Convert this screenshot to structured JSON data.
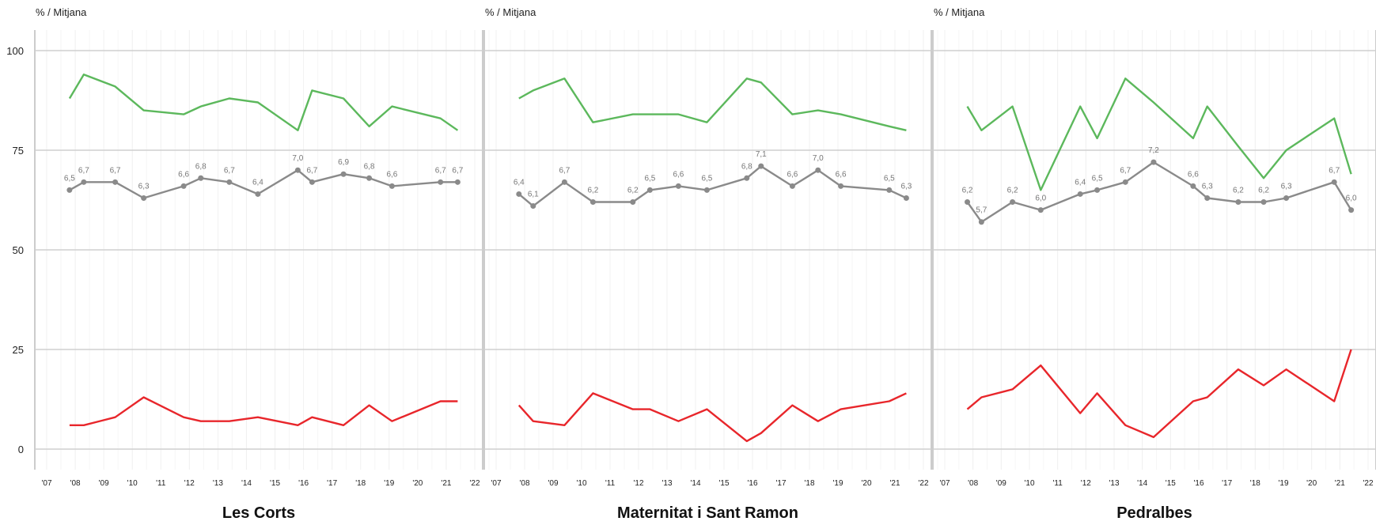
{
  "unit_label": "% / Mitjana",
  "chart_data": [
    {
      "type": "line",
      "title": "Les Corts",
      "ylabel": "% / Mitjana",
      "ylim": [
        0,
        100
      ],
      "yticks": [
        0,
        25,
        50,
        75,
        100
      ],
      "xticks": [
        "'07",
        "'08",
        "'09",
        "'10",
        "'11",
        "'12",
        "'13",
        "'14",
        "'15",
        "'16",
        "'17",
        "'18",
        "'19",
        "'20",
        "'21",
        "'22"
      ],
      "xlim": [
        2007,
        2022
      ],
      "grid": true,
      "series": [
        {
          "color": "#5cb85c",
          "role": "upper",
          "x": [
            2007.8,
            2008.3,
            2009.4,
            2010.4,
            2011.8,
            2012.4,
            2013.4,
            2014.4,
            2015.8,
            2016.3,
            2017.4,
            2018.3,
            2019.1,
            2020.8,
            2021.4
          ],
          "values": [
            88,
            94,
            91,
            85,
            84,
            86,
            88,
            87,
            80,
            90,
            88,
            81,
            86,
            83,
            80
          ]
        },
        {
          "color": "#8a8a8a",
          "role": "mean",
          "markers": true,
          "x": [
            2007.8,
            2008.3,
            2009.4,
            2010.4,
            2011.8,
            2012.4,
            2013.4,
            2014.4,
            2015.8,
            2016.3,
            2017.4,
            2018.3,
            2019.1,
            2020.8,
            2021.4
          ],
          "values": [
            65,
            67,
            67,
            63,
            66,
            68,
            67,
            64,
            70,
            67,
            69,
            68,
            66,
            67,
            67
          ],
          "labels": [
            "6,5",
            "6,7",
            "6,7",
            "6,3",
            "6,6",
            "6,8",
            "6,7",
            "6,4",
            "7,0",
            "6,7",
            "6,9",
            "6,8",
            "6,6",
            "6,7",
            "6,7"
          ]
        },
        {
          "color": "#e8262b",
          "role": "lower",
          "x": [
            2007.8,
            2008.3,
            2009.4,
            2010.4,
            2011.8,
            2012.4,
            2013.4,
            2014.4,
            2015.8,
            2016.3,
            2017.4,
            2018.3,
            2019.1,
            2020.8,
            2021.4
          ],
          "values": [
            6,
            6,
            8,
            13,
            8,
            7,
            7,
            8,
            6,
            8,
            6,
            11,
            7,
            12,
            12
          ]
        }
      ]
    },
    {
      "type": "line",
      "title": "Maternitat i Sant Ramon",
      "ylabel": "% / Mitjana",
      "ylim": [
        0,
        100
      ],
      "xticks": [
        "'07",
        "'08",
        "'09",
        "'10",
        "'11",
        "'12",
        "'13",
        "'14",
        "'15",
        "'16",
        "'17",
        "'18",
        "'19",
        "'20",
        "'21",
        "'22"
      ],
      "xlim": [
        2007,
        2022
      ],
      "grid": true,
      "series": [
        {
          "color": "#5cb85c",
          "role": "upper",
          "x": [
            2007.8,
            2008.3,
            2009.4,
            2010.4,
            2011.8,
            2012.4,
            2013.4,
            2014.4,
            2015.8,
            2016.3,
            2017.4,
            2018.3,
            2019.1,
            2020.8,
            2021.4
          ],
          "values": [
            88,
            90,
            93,
            82,
            84,
            84,
            84,
            82,
            93,
            92,
            84,
            85,
            84,
            81,
            80
          ]
        },
        {
          "color": "#8a8a8a",
          "role": "mean",
          "markers": true,
          "x": [
            2007.8,
            2008.3,
            2009.4,
            2010.4,
            2011.8,
            2012.4,
            2013.4,
            2014.4,
            2015.8,
            2016.3,
            2017.4,
            2018.3,
            2019.1,
            2020.8,
            2021.4
          ],
          "values": [
            64,
            61,
            67,
            62,
            62,
            65,
            66,
            65,
            68,
            71,
            66,
            70,
            66,
            65,
            63
          ],
          "labels": [
            "6,4",
            "6,1",
            "6,7",
            "6,2",
            "6,2",
            "6,5",
            "6,6",
            "6,5",
            "6,8",
            "7,1",
            "6,6",
            "7,0",
            "6,6",
            "6,5",
            "6,3"
          ]
        },
        {
          "color": "#e8262b",
          "role": "lower",
          "x": [
            2007.8,
            2008.3,
            2009.4,
            2010.4,
            2011.8,
            2012.4,
            2013.4,
            2014.4,
            2015.8,
            2016.3,
            2017.4,
            2018.3,
            2019.1,
            2020.8,
            2021.4
          ],
          "values": [
            11,
            7,
            6,
            14,
            10,
            10,
            7,
            10,
            2,
            4,
            11,
            7,
            10,
            12,
            14
          ]
        }
      ]
    },
    {
      "type": "line",
      "title": "Pedralbes",
      "ylabel": "% / Mitjana",
      "ylim": [
        0,
        100
      ],
      "xticks": [
        "'07",
        "'08",
        "'09",
        "'10",
        "'11",
        "'12",
        "'13",
        "'14",
        "'15",
        "'16",
        "'17",
        "'18",
        "'19",
        "'20",
        "'21",
        "'22"
      ],
      "xlim": [
        2007,
        2022
      ],
      "grid": true,
      "series": [
        {
          "color": "#5cb85c",
          "role": "upper",
          "x": [
            2007.8,
            2008.3,
            2009.4,
            2010.4,
            2011.8,
            2012.4,
            2013.4,
            2014.4,
            2015.8,
            2016.3,
            2017.4,
            2018.3,
            2019.1,
            2020.8,
            2021.4
          ],
          "values": [
            86,
            80,
            86,
            65,
            86,
            78,
            93,
            87,
            78,
            86,
            76,
            68,
            75,
            83,
            69
          ]
        },
        {
          "color": "#8a8a8a",
          "role": "mean",
          "markers": true,
          "x": [
            2007.8,
            2008.3,
            2009.4,
            2010.4,
            2011.8,
            2012.4,
            2013.4,
            2014.4,
            2015.8,
            2016.3,
            2017.4,
            2018.3,
            2019.1,
            2020.8,
            2021.4
          ],
          "values": [
            62,
            57,
            62,
            60,
            64,
            65,
            67,
            72,
            66,
            63,
            62,
            62,
            63,
            67,
            60
          ],
          "labels": [
            "6,2",
            "5,7",
            "6,2",
            "6,0",
            "6,4",
            "6,5",
            "6,7",
            "7,2",
            "6,6",
            "6,3",
            "6,2",
            "6,2",
            "6,3",
            "6,7",
            "6,0"
          ]
        },
        {
          "color": "#e8262b",
          "role": "lower",
          "x": [
            2007.8,
            2008.3,
            2009.4,
            2010.4,
            2011.8,
            2012.4,
            2013.4,
            2014.4,
            2015.8,
            2016.3,
            2017.4,
            2018.3,
            2019.1,
            2020.8,
            2021.4
          ],
          "values": [
            10,
            13,
            15,
            21,
            9,
            14,
            6,
            3,
            12,
            13,
            20,
            16,
            20,
            12,
            25
          ]
        }
      ]
    }
  ]
}
